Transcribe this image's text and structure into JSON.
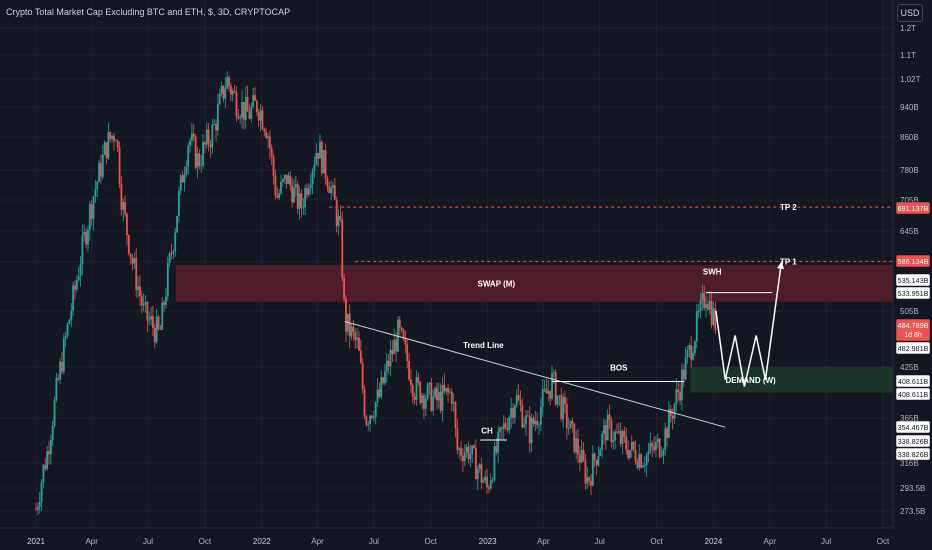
{
  "header": {
    "title": "Crypto Total Market Cap Excluding BTC and ETH, $, 3D, CRYPTOCAP",
    "currency_button": "USD"
  },
  "colors": {
    "background": "#131722",
    "up": "#26a69a",
    "down": "#ef5350",
    "swap_zone": "#5b1f2b",
    "demand_zone": "#1d3a2b",
    "trend_line": "#d1d4dc",
    "annotation": "#ffffff"
  },
  "chart_data": {
    "type": "candlestick",
    "title": "Crypto Total Market Cap Excluding BTC and ETH, $, 3D, CRYPTOCAP",
    "x_ticks": [
      "2021",
      "Apr",
      "Jul",
      "Oct",
      "2022",
      "Apr",
      "Jul",
      "Oct",
      "2023",
      "Apr",
      "Jul",
      "Oct",
      "2024",
      "Apr",
      "Jul",
      "Oct"
    ],
    "y_ticks": [
      "1.2T",
      "1.1T",
      "1.02T",
      "940B",
      "860B",
      "780B",
      "705B",
      "645B",
      "585B",
      "505B",
      "425B",
      "365B",
      "316B",
      "293.5B",
      "273.5B"
    ],
    "y_axis_labels": [
      {
        "text": "691.137B",
        "kind": "red"
      },
      {
        "text": "586.134B",
        "kind": "red"
      },
      {
        "text": "535.143B",
        "kind": "white"
      },
      {
        "text": "533.951B",
        "kind": "white"
      },
      {
        "text": "484.789B",
        "sub": "1d 8h",
        "kind": "price"
      },
      {
        "text": "482.981B",
        "kind": "white"
      },
      {
        "text": "408.611B",
        "kind": "white"
      },
      {
        "text": "408.611B",
        "kind": "white"
      },
      {
        "text": "354.467B",
        "kind": "white"
      },
      {
        "text": "338.826B",
        "kind": "white"
      },
      {
        "text": "338.826B",
        "kind": "white"
      }
    ],
    "levels": [
      {
        "label": "TP 2",
        "value": 691.137
      },
      {
        "label": "TP 1",
        "value": 586.134
      }
    ],
    "zones": [
      {
        "label": "SWAP (M)",
        "top": 580,
        "bottom": 520
      },
      {
        "label": "DEMAND (W)",
        "top": 425,
        "bottom": 395
      }
    ],
    "annotations": [
      "Trend Line",
      "BOS",
      "CH",
      "SWH"
    ],
    "price_path": [
      {
        "date": "2021-01-01",
        "value": 275
      },
      {
        "date": "2021-01-20",
        "value": 330
      },
      {
        "date": "2021-02-15",
        "value": 450
      },
      {
        "date": "2021-03-05",
        "value": 540
      },
      {
        "date": "2021-04-01",
        "value": 700
      },
      {
        "date": "2021-04-25",
        "value": 840
      },
      {
        "date": "2021-05-10",
        "value": 880
      },
      {
        "date": "2021-05-20",
        "value": 700
      },
      {
        "date": "2021-06-05",
        "value": 590
      },
      {
        "date": "2021-06-25",
        "value": 500
      },
      {
        "date": "2021-07-20",
        "value": 470
      },
      {
        "date": "2021-08-10",
        "value": 620
      },
      {
        "date": "2021-09-05",
        "value": 860
      },
      {
        "date": "2021-09-20",
        "value": 800
      },
      {
        "date": "2021-10-15",
        "value": 880
      },
      {
        "date": "2021-11-05",
        "value": 1020
      },
      {
        "date": "2021-11-20",
        "value": 960
      },
      {
        "date": "2021-12-10",
        "value": 920
      },
      {
        "date": "2021-12-25",
        "value": 950
      },
      {
        "date": "2022-01-10",
        "value": 880
      },
      {
        "date": "2022-01-25",
        "value": 710
      },
      {
        "date": "2022-02-10",
        "value": 760
      },
      {
        "date": "2022-03-05",
        "value": 690
      },
      {
        "date": "2022-04-01",
        "value": 840
      },
      {
        "date": "2022-04-20",
        "value": 750
      },
      {
        "date": "2022-05-08",
        "value": 640
      },
      {
        "date": "2022-05-15",
        "value": 490
      },
      {
        "date": "2022-06-05",
        "value": 455
      },
      {
        "date": "2022-06-18",
        "value": 365
      },
      {
        "date": "2022-07-10",
        "value": 390
      },
      {
        "date": "2022-08-10",
        "value": 475
      },
      {
        "date": "2022-09-05",
        "value": 400
      },
      {
        "date": "2022-10-10",
        "value": 385
      },
      {
        "date": "2022-11-05",
        "value": 395
      },
      {
        "date": "2022-11-12",
        "value": 330
      },
      {
        "date": "2022-12-01",
        "value": 330
      },
      {
        "date": "2022-12-31",
        "value": 293
      },
      {
        "date": "2023-01-20",
        "value": 340
      },
      {
        "date": "2023-02-15",
        "value": 390
      },
      {
        "date": "2023-03-10",
        "value": 350
      },
      {
        "date": "2023-04-15",
        "value": 408
      },
      {
        "date": "2023-05-10",
        "value": 360
      },
      {
        "date": "2023-06-12",
        "value": 300
      },
      {
        "date": "2023-07-12",
        "value": 355
      },
      {
        "date": "2023-08-20",
        "value": 330
      },
      {
        "date": "2023-09-10",
        "value": 322
      },
      {
        "date": "2023-10-10",
        "value": 338
      },
      {
        "date": "2023-10-25",
        "value": 370
      },
      {
        "date": "2023-11-10",
        "value": 408
      },
      {
        "date": "2023-12-01",
        "value": 470
      },
      {
        "date": "2023-12-20",
        "value": 535
      },
      {
        "date": "2024-01-05",
        "value": 485
      }
    ],
    "projection": [
      {
        "date": "2024-01-05",
        "value": 505
      },
      {
        "date": "2024-01-20",
        "value": 410
      },
      {
        "date": "2024-02-05",
        "value": 470
      },
      {
        "date": "2024-02-20",
        "value": 402
      },
      {
        "date": "2024-03-10",
        "value": 470
      },
      {
        "date": "2024-03-25",
        "value": 410
      },
      {
        "date": "2024-04-20",
        "value": 586
      }
    ]
  }
}
